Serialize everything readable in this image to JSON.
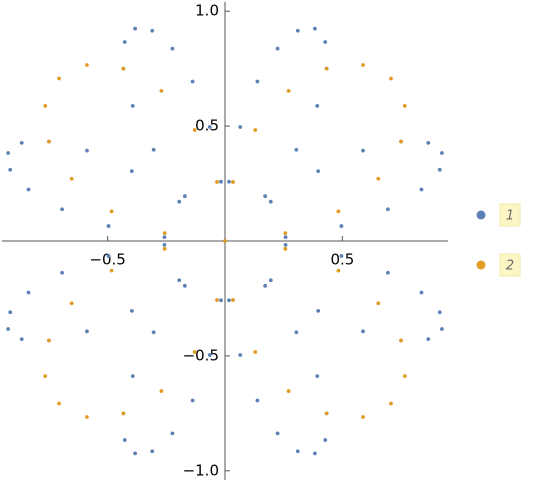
{
  "chart_data": {
    "type": "scatter",
    "xlim": [
      -0.95,
      0.95
    ],
    "ylim": [
      -1.04,
      1.04
    ],
    "xticks": [
      {
        "value": -0.5,
        "label": "−0.5"
      },
      0.5
    ],
    "yticks": [
      {
        "value": -1,
        "label": "−1.0"
      },
      {
        "value": -0.5,
        "label": "−0.5"
      },
      0.5,
      {
        "value": 1,
        "label": "1.0"
      }
    ],
    "series": [
      {
        "name": "1",
        "color": "#5e81b5",
        "x": [
          0,
          0.258,
          0.496,
          0.694,
          0.837,
          0.915,
          0.924,
          0.866,
          0.75,
          0.588,
          0.397,
          0.195,
          0.017,
          0.065,
          0.138,
          0.224,
          0.31,
          0.383,
          0.427,
          0.433,
          0.393,
          0.304,
          0.171,
          -0.017,
          -0.065,
          -0.138,
          -0.224,
          -0.31,
          -0.383,
          -0.427,
          -0.433,
          -0.393,
          -0.304,
          -0.171,
          -0.258,
          -0.496,
          -0.694,
          -0.837,
          -0.915,
          -0.924,
          -0.866,
          -0.75,
          -0.588,
          -0.397,
          -0.195,
          -0.258,
          -0.496,
          -0.694,
          -0.837,
          -0.915,
          -0.924,
          -0.866,
          -0.75,
          -0.588,
          -0.397,
          -0.195,
          -0.017,
          -0.065,
          -0.138,
          -0.224,
          -0.31,
          -0.383,
          -0.427,
          -0.433,
          -0.393,
          -0.304,
          -0.171,
          0.017,
          0.065,
          0.138,
          0.224,
          0.31,
          0.383,
          0.427,
          0.433,
          0.393,
          0.304,
          0.171,
          0.258,
          0.496,
          0.694,
          0.837,
          0.915,
          0.924,
          0.866,
          0.75,
          0.588,
          0.397,
          0.195
        ],
        "y": [
          0,
          0.017,
          0.065,
          0.138,
          0.224,
          0.31,
          0.383,
          0.427,
          0.433,
          0.393,
          0.304,
          0.171,
          0.258,
          0.496,
          0.694,
          0.837,
          0.915,
          0.924,
          0.866,
          0.75,
          0.588,
          0.397,
          0.195,
          0.258,
          0.496,
          0.694,
          0.837,
          0.915,
          0.924,
          0.866,
          0.75,
          0.588,
          0.397,
          0.195,
          0.017,
          0.065,
          0.138,
          0.224,
          0.31,
          0.383,
          0.427,
          0.433,
          0.393,
          0.304,
          0.171,
          -0.017,
          -0.065,
          -0.138,
          -0.224,
          -0.31,
          -0.383,
          -0.427,
          -0.433,
          -0.393,
          -0.304,
          -0.171,
          -0.258,
          -0.496,
          -0.694,
          -0.837,
          -0.915,
          -0.924,
          -0.866,
          -0.75,
          -0.588,
          -0.397,
          -0.195,
          -0.258,
          -0.496,
          -0.694,
          -0.837,
          -0.915,
          -0.924,
          -0.866,
          -0.75,
          -0.588,
          -0.397,
          -0.195,
          -0.017,
          -0.065,
          -0.138,
          -0.224,
          -0.31,
          -0.383,
          -0.427,
          -0.433,
          -0.393,
          -0.304,
          -0.171
        ]
      },
      {
        "name": "2",
        "color": "#e19c24",
        "x": [
          0,
          0.257,
          0.483,
          0.653,
          0.75,
          0.766,
          0.707,
          0.588,
          0.433,
          0.271,
          0.129,
          0.034,
          -0.257,
          -0.483,
          -0.653,
          -0.75,
          -0.766,
          -0.707,
          -0.588,
          -0.433,
          -0.271,
          -0.129,
          -0.034,
          -0.257,
          -0.483,
          -0.653,
          -0.75,
          -0.766,
          -0.707,
          -0.588,
          -0.433,
          -0.271,
          -0.129,
          -0.034,
          0.257,
          0.483,
          0.653,
          0.75,
          0.766,
          0.707,
          0.588,
          0.433,
          0.271,
          0.129,
          0.034
        ],
        "y": [
          0,
          0.034,
          0.129,
          0.271,
          0.433,
          0.588,
          0.707,
          0.766,
          0.75,
          0.653,
          0.483,
          0.257,
          0.034,
          0.129,
          0.271,
          0.433,
          0.588,
          0.707,
          0.766,
          0.75,
          0.653,
          0.483,
          0.257,
          -0.034,
          -0.129,
          -0.271,
          -0.433,
          -0.588,
          -0.707,
          -0.766,
          -0.75,
          -0.653,
          -0.483,
          -0.257,
          -0.034,
          -0.129,
          -0.271,
          -0.433,
          -0.588,
          -0.707,
          -0.766,
          -0.75,
          -0.653,
          -0.483,
          -0.257
        ]
      }
    ]
  }
}
